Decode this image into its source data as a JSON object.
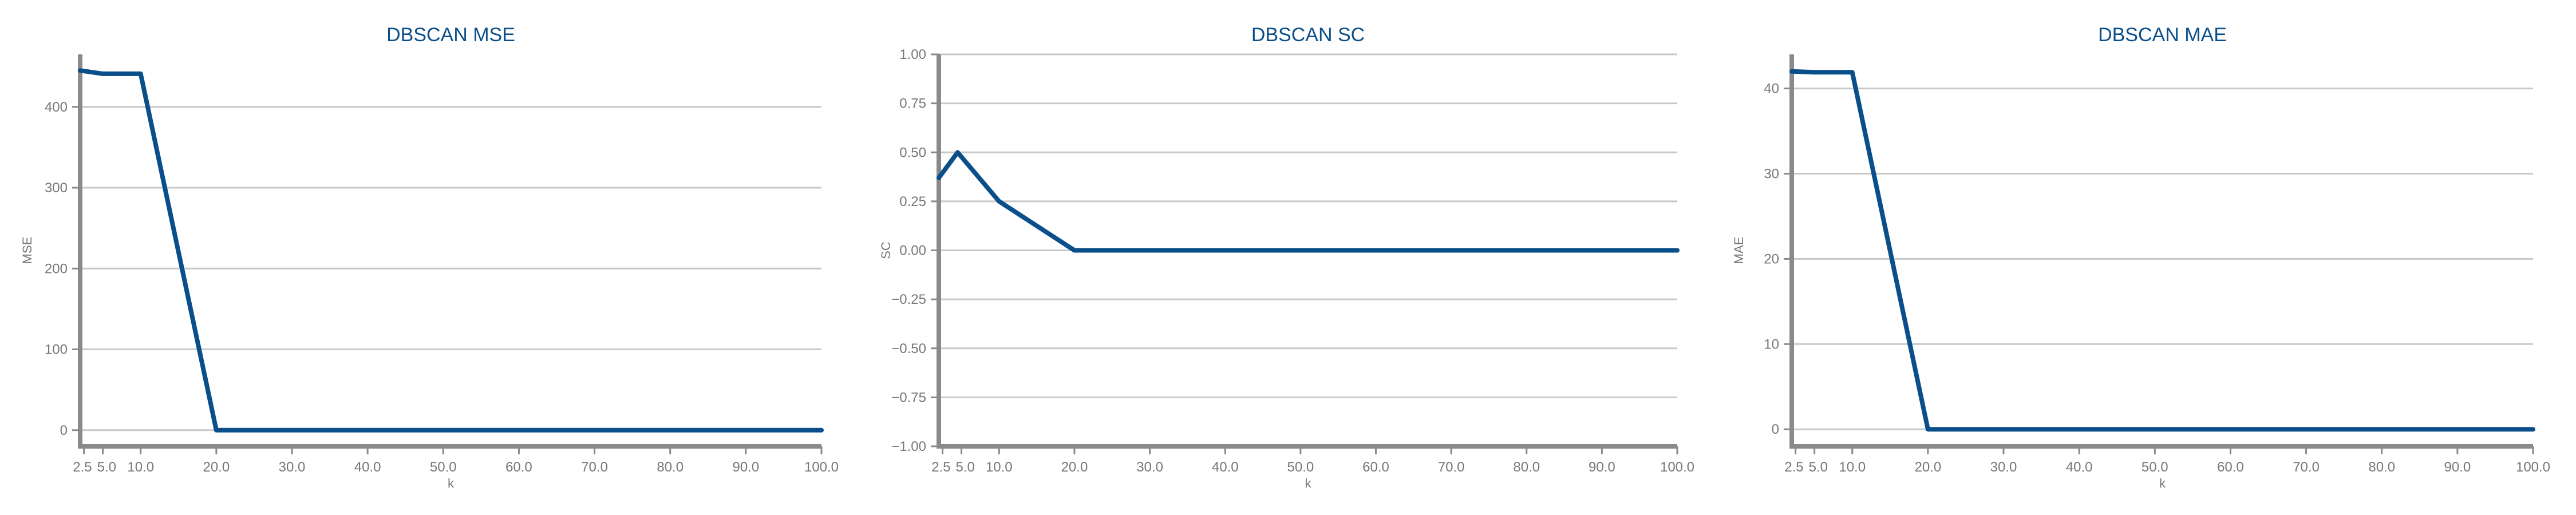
{
  "chart_data": [
    {
      "type": "line",
      "title": "DBSCAN MSE",
      "xlabel": "k",
      "ylabel": "MSE",
      "xlim": [
        2,
        100
      ],
      "ylim": [
        -20,
        465
      ],
      "xticks": [
        2.5,
        5.0,
        10.0,
        20.0,
        30.0,
        40.0,
        50.0,
        60.0,
        70.0,
        80.0,
        90.0,
        100.0
      ],
      "xtick_labels": [
        "2.5",
        "5.0",
        "10.0",
        "20.0",
        "30.0",
        "40.0",
        "50.0",
        "60.0",
        "70.0",
        "80.0",
        "90.0",
        "100.0"
      ],
      "yticks": [
        0,
        100,
        200,
        300,
        400
      ],
      "ytick_labels": [
        "0",
        "100",
        "200",
        "300",
        "400"
      ],
      "grid": true,
      "color": "#0b4f8a",
      "x": [
        2,
        5,
        10,
        20,
        30,
        40,
        50,
        60,
        70,
        80,
        90,
        100
      ],
      "y": [
        445,
        441,
        441,
        0,
        0,
        0,
        0,
        0,
        0,
        0,
        0,
        0
      ]
    },
    {
      "type": "line",
      "title": "DBSCAN SC",
      "xlabel": "k",
      "ylabel": "SC",
      "xlim": [
        2,
        100
      ],
      "ylim": [
        -1.0,
        1.0
      ],
      "xticks": [
        2.5,
        5.0,
        10.0,
        20.0,
        30.0,
        40.0,
        50.0,
        60.0,
        70.0,
        80.0,
        90.0,
        100.0
      ],
      "xtick_labels": [
        "2.5",
        "5.0",
        "10.0",
        "20.0",
        "30.0",
        "40.0",
        "50.0",
        "60.0",
        "70.0",
        "80.0",
        "90.0",
        "100.0"
      ],
      "yticks": [
        -1.0,
        -0.75,
        -0.5,
        -0.25,
        0.0,
        0.25,
        0.5,
        0.75,
        1.0
      ],
      "ytick_labels": [
        "−1.00",
        "−0.75",
        "−0.50",
        "−0.25",
        "0.00",
        "0.25",
        "0.50",
        "0.75",
        "1.00"
      ],
      "grid": true,
      "color": "#0b4f8a",
      "x": [
        2,
        4.5,
        10,
        20,
        30,
        40,
        50,
        60,
        70,
        80,
        90,
        100
      ],
      "y": [
        0.37,
        0.5,
        0.25,
        0.0,
        0.0,
        0.0,
        0.0,
        0.0,
        0.0,
        0.0,
        0.0,
        0.0
      ]
    },
    {
      "type": "line",
      "title": "DBSCAN MAE",
      "xlabel": "k",
      "ylabel": "MAE",
      "xlim": [
        2,
        100
      ],
      "ylim": [
        -2,
        44
      ],
      "xticks": [
        2.5,
        5.0,
        10.0,
        20.0,
        30.0,
        40.0,
        50.0,
        60.0,
        70.0,
        80.0,
        90.0,
        100.0
      ],
      "xtick_labels": [
        "2.5",
        "5.0",
        "10.0",
        "20.0",
        "30.0",
        "40.0",
        "50.0",
        "60.0",
        "70.0",
        "80.0",
        "90.0",
        "100.0"
      ],
      "yticks": [
        0,
        10,
        20,
        30,
        40
      ],
      "ytick_labels": [
        "0",
        "10",
        "20",
        "30",
        "40"
      ],
      "grid": true,
      "color": "#0b4f8a",
      "x": [
        2,
        5,
        10,
        20,
        30,
        40,
        50,
        60,
        70,
        80,
        90,
        100
      ],
      "y": [
        42.0,
        41.9,
        41.9,
        0,
        0,
        0,
        0,
        0,
        0,
        0,
        0,
        0
      ]
    }
  ]
}
